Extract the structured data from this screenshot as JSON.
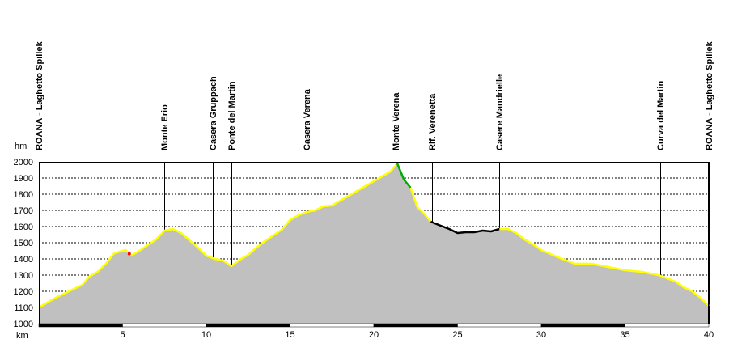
{
  "chart_data": {
    "type": "area",
    "title": "",
    "xlabel": "km",
    "ylabel": "hm",
    "xlim": [
      0,
      40
    ],
    "ylim": [
      1000,
      2000
    ],
    "x_ticks": [
      0,
      5,
      10,
      15,
      20,
      25,
      30,
      35,
      40
    ],
    "x_tick_labels": [
      "",
      "5",
      "10",
      "15",
      "20",
      "25",
      "30",
      "35",
      "40"
    ],
    "y_ticks": [
      1000,
      1100,
      1200,
      1300,
      1400,
      1500,
      1600,
      1700,
      1800,
      1900,
      2000
    ],
    "y_tick_labels": [
      "1000",
      "1100",
      "1200",
      "1300",
      "1400",
      "1500",
      "1600",
      "1700",
      "1800",
      "1900",
      "2000"
    ],
    "grid": true,
    "fill_color": "#c0c0c0",
    "colors": {
      "surface_asphalt": "#ffff00",
      "steep_segment": "#00aa00",
      "trail_segment": "#000000",
      "marker": "#ff0000"
    },
    "profile": {
      "x": [
        0,
        1,
        2,
        2.6,
        3,
        3.5,
        4,
        4.5,
        5,
        5.2,
        5.5,
        6,
        6.5,
        7,
        7.5,
        8,
        8.5,
        9,
        9.5,
        10,
        10.5,
        11,
        11.5,
        12,
        12.5,
        13,
        13.5,
        14,
        14.5,
        15,
        15.5,
        16,
        16.5,
        17,
        17.5,
        18,
        18.5,
        19,
        19.5,
        20,
        20.5,
        21,
        21.4,
        21.8,
        22.2,
        22.6,
        23,
        23.4,
        24,
        24.5,
        25,
        25.5,
        26,
        26.5,
        27,
        27.5,
        28,
        28.5,
        29,
        29.5,
        30,
        31,
        32,
        33,
        34,
        35,
        36,
        37,
        37.5,
        38,
        38.5,
        39,
        39.5,
        40
      ],
      "y": [
        1100,
        1160,
        1210,
        1240,
        1290,
        1320,
        1370,
        1435,
        1450,
        1455,
        1420,
        1450,
        1485,
        1520,
        1575,
        1585,
        1560,
        1515,
        1470,
        1420,
        1400,
        1390,
        1355,
        1395,
        1425,
        1470,
        1510,
        1545,
        1580,
        1640,
        1670,
        1690,
        1700,
        1725,
        1730,
        1760,
        1790,
        1820,
        1850,
        1880,
        1910,
        1940,
        1990,
        1890,
        1840,
        1720,
        1680,
        1630,
        1605,
        1585,
        1560,
        1565,
        1565,
        1575,
        1570,
        1585,
        1585,
        1560,
        1520,
        1490,
        1455,
        1410,
        1370,
        1370,
        1350,
        1330,
        1320,
        1300,
        1280,
        1260,
        1225,
        1200,
        1160,
        1110
      ]
    },
    "segments": [
      {
        "surface": "steep_segment",
        "from": 21.4,
        "to": 22.2
      },
      {
        "surface": "trail_segment",
        "from": 23.4,
        "to": 27.5
      }
    ],
    "marker_x": 5.4,
    "waypoints": [
      {
        "name": "ROANA - Laghetto Spillek",
        "km": 0
      },
      {
        "name": "Monte Erio",
        "km": 7.5
      },
      {
        "name": "Casera Gruppach",
        "km": 10.4
      },
      {
        "name": "Ponte del Martin",
        "km": 11.5
      },
      {
        "name": "Casera Verena",
        "km": 16
      },
      {
        "name": "Monte Verena",
        "km": 21.3
      },
      {
        "name": "Rif. Verenetta",
        "km": 23.5
      },
      {
        "name": "Casere Mandrielle",
        "km": 27.5
      },
      {
        "name": "Curva del Martin",
        "km": 37.1
      },
      {
        "name": "ROANA - Laghetto Spillek",
        "km": 40
      }
    ]
  }
}
